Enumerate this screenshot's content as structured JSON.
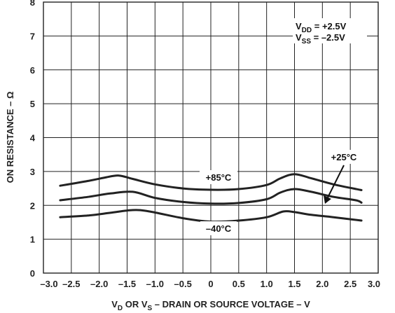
{
  "chart_data": {
    "type": "line",
    "xlabel": {
      "p1": "V",
      "s1": "D",
      "p2": " OR V",
      "s2": "S",
      "p3": " – DRAIN OR SOURCE VOLTAGE – V"
    },
    "ylabel": "ON RESISTANCE – Ω",
    "xlim": [
      -3.0,
      3.0
    ],
    "ylim": [
      0,
      8
    ],
    "grid": true,
    "x_ticks": [
      "–3.0",
      "–2.5",
      "–2.0",
      "–1.5",
      "–1.0",
      "–0.5",
      "0",
      "0.5",
      "1.0",
      "1.5",
      "2.0",
      "2.5",
      "3.0"
    ],
    "y_ticks": [
      "0",
      "1",
      "2",
      "3",
      "4",
      "5",
      "6",
      "7",
      "8"
    ],
    "series": [
      {
        "name": "+85°C",
        "x": [
          -2.7,
          -2.2,
          -1.9,
          -1.65,
          -1.4,
          -1.0,
          -0.5,
          0.0,
          0.5,
          1.0,
          1.25,
          1.5,
          1.8,
          2.2,
          2.7
        ],
        "y": [
          2.58,
          2.72,
          2.82,
          2.88,
          2.78,
          2.62,
          2.5,
          2.46,
          2.48,
          2.6,
          2.8,
          2.92,
          2.8,
          2.62,
          2.45
        ]
      },
      {
        "name": "+25°C",
        "x": [
          -2.7,
          -2.2,
          -1.8,
          -1.4,
          -1.0,
          -0.5,
          0.0,
          0.5,
          1.0,
          1.25,
          1.5,
          1.8,
          2.2,
          2.6,
          2.7
        ],
        "y": [
          2.15,
          2.25,
          2.35,
          2.4,
          2.22,
          2.1,
          2.05,
          2.07,
          2.18,
          2.38,
          2.48,
          2.4,
          2.25,
          2.15,
          2.08
        ]
      },
      {
        "name": "–40°C",
        "x": [
          -2.7,
          -2.2,
          -1.8,
          -1.4,
          -1.1,
          -0.5,
          0.0,
          0.5,
          1.0,
          1.3,
          1.5,
          1.8,
          2.2,
          2.7
        ],
        "y": [
          1.65,
          1.7,
          1.78,
          1.86,
          1.82,
          1.62,
          1.52,
          1.55,
          1.65,
          1.82,
          1.8,
          1.72,
          1.65,
          1.55
        ]
      }
    ],
    "annotations": {
      "vdd": {
        "p1": "V",
        "s1": "DD",
        "p2": " = +2.5V"
      },
      "vss": {
        "p1": "V",
        "s1": "SS",
        "p2": " = –2.5V"
      },
      "label_85": "+85°C",
      "label_25": "+25°C",
      "label_m40": "–40°C"
    }
  }
}
